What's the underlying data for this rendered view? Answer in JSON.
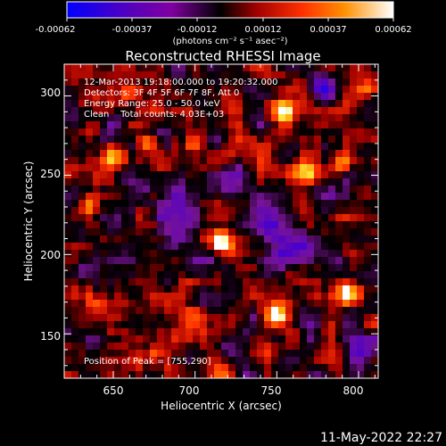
{
  "chart_data": {
    "type": "heatmap",
    "title": "Reconstructed RHESSI Image",
    "xlabel": "Heliocentric X (arcsec)",
    "ylabel": "Heliocentric Y (arcsec)",
    "xlim": [
      620,
      812
    ],
    "ylim": [
      122,
      320
    ],
    "x_ticks": [
      650,
      700,
      750,
      800
    ],
    "y_ticks": [
      150,
      200,
      250,
      300
    ],
    "colorbar": {
      "ticks": [
        "-0.00062",
        "-0.00037",
        "-0.00012",
        "0.00012",
        "0.00037",
        "0.00062"
      ],
      "unit_label": "(photons cm⁻² s⁻¹ asec⁻²)",
      "range": [
        -0.00062,
        0.00062
      ]
    },
    "info_lines": [
      "12-Mar-2013 19:18:00.000 to 19:20:32.000",
      "Detectors: 3F 4F 5F 6F 7F 8F, Att 0",
      "Energy Range: 25.0 - 50.0 keV",
      "Clean    Total counts: 4.03E+03"
    ],
    "peak_label": "Position of Peak = [755,290]",
    "peak": {
      "x": 755,
      "y": 290
    },
    "bright_spots": [
      {
        "x": 755,
        "y": 290,
        "r": 7,
        "v": 1.0
      },
      {
        "x": 716,
        "y": 208,
        "r": 6,
        "v": 0.9
      },
      {
        "x": 748,
        "y": 163,
        "r": 8,
        "v": 0.75
      },
      {
        "x": 700,
        "y": 163,
        "r": 8,
        "v": 0.75
      },
      {
        "x": 650,
        "y": 262,
        "r": 7,
        "v": 0.7
      },
      {
        "x": 635,
        "y": 232,
        "r": 6,
        "v": 0.65
      },
      {
        "x": 672,
        "y": 270,
        "r": 6,
        "v": 0.6
      },
      {
        "x": 700,
        "y": 270,
        "r": 6,
        "v": 0.6
      },
      {
        "x": 770,
        "y": 250,
        "r": 7,
        "v": 0.65
      },
      {
        "x": 789,
        "y": 258,
        "r": 6,
        "v": 0.6
      },
      {
        "x": 793,
        "y": 175,
        "r": 7,
        "v": 0.65
      },
      {
        "x": 640,
        "y": 168,
        "r": 7,
        "v": 0.6
      },
      {
        "x": 676,
        "y": 137,
        "r": 6,
        "v": 0.6
      },
      {
        "x": 803,
        "y": 303,
        "r": 6,
        "v": 0.55
      },
      {
        "x": 660,
        "y": 303,
        "r": 6,
        "v": 0.55
      }
    ],
    "dark_regions": [
      {
        "x": 690,
        "y": 225,
        "r": 16,
        "v": -0.55
      },
      {
        "x": 760,
        "y": 200,
        "r": 14,
        "v": -0.5
      },
      {
        "x": 720,
        "y": 245,
        "r": 10,
        "v": -0.45
      },
      {
        "x": 745,
        "y": 220,
        "r": 12,
        "v": -0.45
      },
      {
        "x": 800,
        "y": 140,
        "r": 10,
        "v": -0.5
      },
      {
        "x": 780,
        "y": 305,
        "r": 10,
        "v": -0.45
      },
      {
        "x": 700,
        "y": 195,
        "r": 8,
        "v": -0.4
      }
    ]
  },
  "footer": {
    "timestamp": "11-May-2022 22:27"
  }
}
